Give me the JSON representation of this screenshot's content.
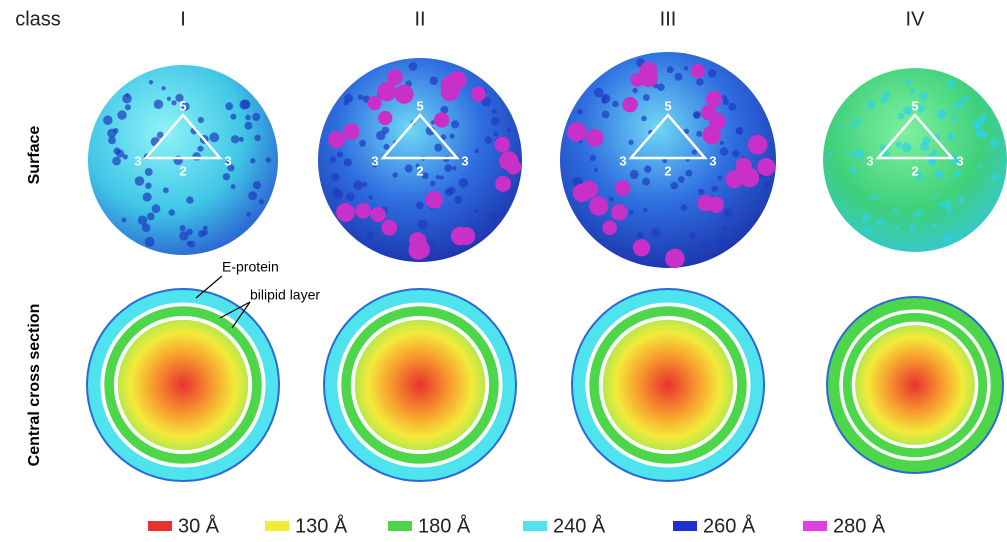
{
  "header": {
    "label": "class",
    "columns": [
      "I",
      "II",
      "III",
      "IV"
    ]
  },
  "rows": [
    "Surface",
    "Central cross section"
  ],
  "triangle_labels": {
    "top": "5",
    "left": "3",
    "right": "3",
    "bottom": "2"
  },
  "annotations": {
    "e_protein": "E-protein",
    "bilipid": "bilipid layer"
  },
  "legend": [
    {
      "label": "30 Å",
      "color": "#e8322e"
    },
    {
      "label": "130 Å",
      "color": "#f4ea3a"
    },
    {
      "label": "180 Å",
      "color": "#4ed64a"
    },
    {
      "label": "240 Å",
      "color": "#4fe3ee"
    },
    {
      "label": "260 Å",
      "color": "#1d2fd0"
    },
    {
      "label": "280 Å",
      "color": "#e040e0"
    }
  ]
}
